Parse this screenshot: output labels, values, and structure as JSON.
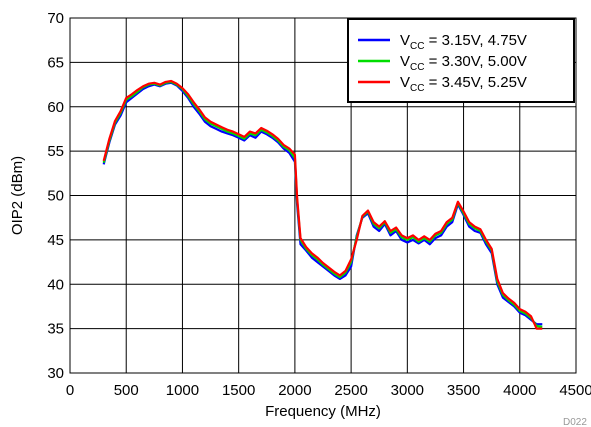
{
  "chart_data": {
    "type": "line",
    "title": "",
    "xlabel": "Frequency (MHz)",
    "ylabel": "OIP2 (dBm)",
    "xlim": [
      0,
      4500
    ],
    "ylim": [
      30,
      70
    ],
    "xticks": [
      0,
      500,
      1000,
      1500,
      2000,
      2500,
      3000,
      3500,
      4000,
      4500
    ],
    "yticks": [
      30,
      35,
      40,
      45,
      50,
      55,
      60,
      65,
      70
    ],
    "grid": true,
    "legend_position": "top-right",
    "figure_id": "D022",
    "series": [
      {
        "name": "V_CC = 3.15V, 4.75V",
        "legend_main": "V",
        "legend_sub": "CC",
        "legend_rest": " = 3.15V, 4.75V",
        "color": "#0000ff",
        "x": [
          300,
          350,
          400,
          450,
          500,
          550,
          600,
          650,
          700,
          750,
          800,
          850,
          900,
          950,
          1000,
          1050,
          1100,
          1150,
          1200,
          1250,
          1300,
          1350,
          1400,
          1450,
          1500,
          1550,
          1600,
          1650,
          1700,
          1750,
          1800,
          1850,
          1900,
          1950,
          2000,
          2020,
          2050,
          2100,
          2150,
          2200,
          2250,
          2300,
          2350,
          2400,
          2450,
          2500,
          2550,
          2600,
          2650,
          2700,
          2750,
          2800,
          2850,
          2900,
          2950,
          3000,
          3050,
          3100,
          3150,
          3200,
          3250,
          3300,
          3350,
          3400,
          3450,
          3500,
          3550,
          3600,
          3650,
          3700,
          3750,
          3800,
          3850,
          3900,
          3950,
          4000,
          4050,
          4100,
          4150,
          4200
        ],
        "y": [
          53.5,
          56.0,
          58.0,
          59.0,
          60.5,
          61.0,
          61.5,
          62.0,
          62.3,
          62.5,
          62.3,
          62.6,
          62.7,
          62.4,
          61.8,
          61.0,
          60.0,
          59.2,
          58.3,
          57.8,
          57.5,
          57.2,
          57.0,
          56.8,
          56.5,
          56.2,
          56.8,
          56.5,
          57.2,
          56.9,
          56.5,
          56.0,
          55.3,
          54.8,
          53.8,
          49.0,
          44.5,
          43.8,
          43.0,
          42.5,
          42.0,
          41.5,
          41.0,
          40.6,
          41.0,
          42.0,
          45.5,
          47.5,
          48.0,
          46.5,
          46.0,
          46.8,
          45.5,
          46.0,
          45.0,
          44.7,
          45.0,
          44.6,
          45.0,
          44.5,
          45.2,
          45.5,
          46.5,
          47.0,
          49.0,
          47.8,
          46.5,
          46.0,
          45.8,
          44.5,
          43.5,
          40.0,
          38.5,
          38.0,
          37.5,
          36.8,
          36.5,
          36.0,
          35.5,
          35.5
        ]
      },
      {
        "name": "V_CC = 3.30V, 5.00V",
        "legend_main": "V",
        "legend_sub": "CC",
        "legend_rest": " = 3.30V, 5.00V",
        "color": "#00dd00",
        "x": [
          300,
          350,
          400,
          450,
          500,
          550,
          600,
          650,
          700,
          750,
          800,
          850,
          900,
          950,
          1000,
          1050,
          1100,
          1150,
          1200,
          1250,
          1300,
          1350,
          1400,
          1450,
          1500,
          1550,
          1600,
          1650,
          1700,
          1750,
          1800,
          1850,
          1900,
          1950,
          2000,
          2020,
          2050,
          2100,
          2150,
          2200,
          2250,
          2300,
          2350,
          2400,
          2450,
          2500,
          2550,
          2600,
          2650,
          2700,
          2750,
          2800,
          2850,
          2900,
          2950,
          3000,
          3050,
          3100,
          3150,
          3200,
          3250,
          3300,
          3350,
          3400,
          3450,
          3500,
          3550,
          3600,
          3650,
          3700,
          3750,
          3800,
          3850,
          3900,
          3950,
          4000,
          4050,
          4100,
          4150,
          4200
        ],
        "y": [
          53.7,
          56.2,
          58.2,
          59.3,
          60.8,
          61.2,
          61.7,
          62.2,
          62.5,
          62.6,
          62.4,
          62.7,
          62.8,
          62.5,
          62.0,
          61.2,
          60.3,
          59.5,
          58.6,
          58.1,
          57.8,
          57.5,
          57.2,
          57.0,
          56.7,
          56.4,
          57.0,
          56.8,
          57.4,
          57.1,
          56.7,
          56.2,
          55.5,
          55.1,
          54.2,
          49.5,
          45.0,
          44.0,
          43.3,
          42.8,
          42.2,
          41.7,
          41.2,
          40.8,
          41.3,
          42.5,
          45.3,
          47.6,
          48.2,
          46.8,
          46.3,
          47.0,
          45.8,
          46.2,
          45.3,
          45.0,
          45.3,
          44.8,
          45.2,
          44.8,
          45.5,
          45.8,
          46.8,
          47.3,
          49.2,
          48.0,
          46.8,
          46.3,
          46.0,
          44.8,
          43.8,
          40.3,
          38.8,
          38.2,
          37.7,
          37.0,
          36.7,
          36.2,
          35.3,
          35.2
        ]
      },
      {
        "name": "V_CC = 3.45V, 5.25V",
        "legend_main": "V",
        "legend_sub": "CC",
        "legend_rest": " = 3.45V, 5.25V",
        "color": "#ff0000",
        "x": [
          300,
          350,
          400,
          450,
          500,
          550,
          600,
          650,
          700,
          750,
          800,
          850,
          900,
          950,
          1000,
          1050,
          1100,
          1150,
          1200,
          1250,
          1300,
          1350,
          1400,
          1450,
          1500,
          1550,
          1600,
          1650,
          1700,
          1750,
          1800,
          1850,
          1900,
          1950,
          2000,
          2020,
          2050,
          2100,
          2150,
          2200,
          2250,
          2300,
          2350,
          2400,
          2450,
          2500,
          2550,
          2600,
          2650,
          2700,
          2750,
          2800,
          2850,
          2900,
          2950,
          3000,
          3050,
          3100,
          3150,
          3200,
          3250,
          3300,
          3350,
          3400,
          3450,
          3500,
          3550,
          3600,
          3650,
          3700,
          3750,
          3800,
          3850,
          3900,
          3950,
          4000,
          4050,
          4100,
          4150,
          4200
        ],
        "y": [
          53.9,
          56.4,
          58.4,
          59.5,
          61.0,
          61.4,
          61.9,
          62.3,
          62.6,
          62.7,
          62.5,
          62.8,
          62.9,
          62.6,
          62.1,
          61.4,
          60.5,
          59.7,
          58.8,
          58.3,
          58.0,
          57.7,
          57.4,
          57.2,
          56.9,
          56.6,
          57.2,
          57.0,
          57.6,
          57.3,
          56.9,
          56.4,
          55.7,
          55.3,
          54.6,
          49.8,
          45.2,
          44.2,
          43.5,
          43.0,
          42.4,
          41.9,
          41.4,
          41.0,
          41.5,
          42.8,
          45.0,
          47.7,
          48.3,
          47.0,
          46.5,
          47.1,
          46.0,
          46.4,
          45.5,
          45.2,
          45.5,
          45.0,
          45.4,
          45.0,
          45.7,
          46.0,
          47.0,
          47.5,
          49.3,
          48.2,
          47.0,
          46.5,
          46.2,
          45.0,
          44.0,
          40.6,
          39.0,
          38.4,
          37.9,
          37.2,
          36.9,
          36.4,
          35.0,
          35.0
        ]
      }
    ]
  }
}
